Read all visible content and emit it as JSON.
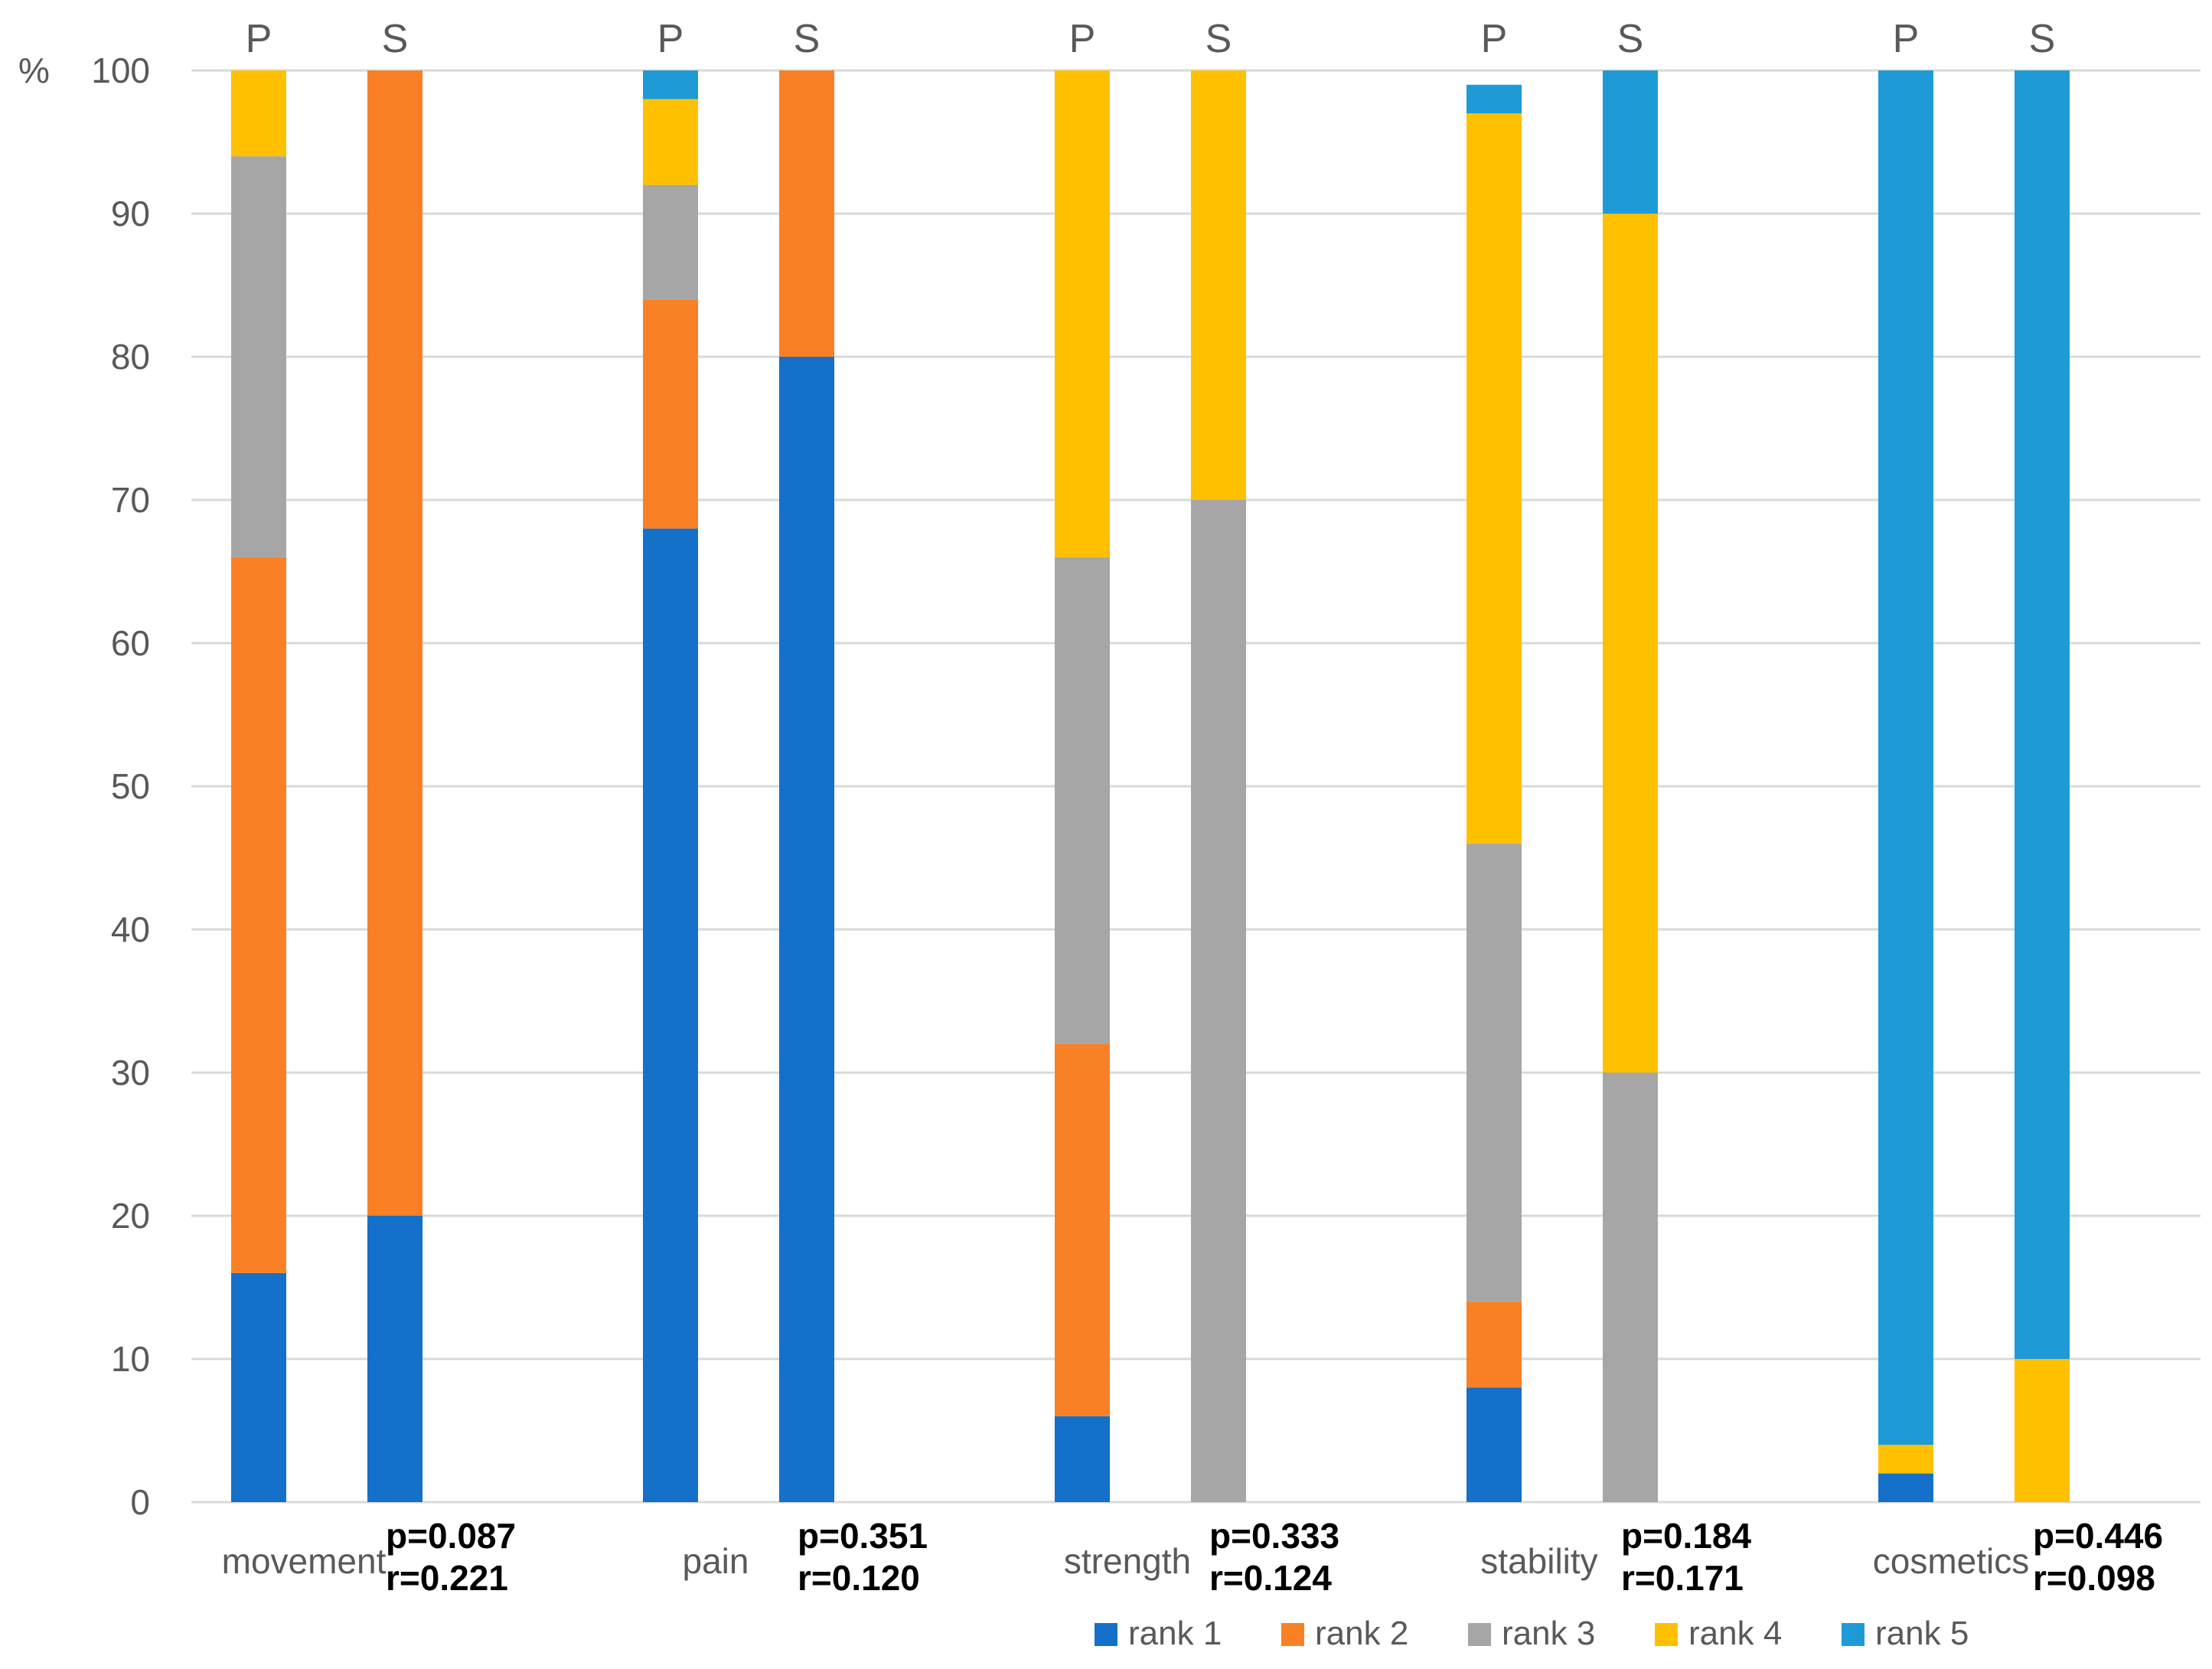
{
  "chart_data": {
    "type": "bar",
    "stacked": true,
    "y_unit_label": "%",
    "ylim": [
      0,
      100
    ],
    "y_ticks": [
      0,
      10,
      20,
      30,
      40,
      50,
      60,
      70,
      80,
      90,
      100
    ],
    "grid": true,
    "legend_position": "bottom-right",
    "series": [
      {
        "name": "rank 1",
        "color": "#1470C8"
      },
      {
        "name": "rank 2",
        "color": "#F98025"
      },
      {
        "name": "rank 3",
        "color": "#A6A6A6"
      },
      {
        "name": "rank 4",
        "color": "#FFC000"
      },
      {
        "name": "rank 5",
        "color": "#1E9BD7"
      }
    ],
    "groups": [
      {
        "label": "movement",
        "bars": [
          {
            "label": "P",
            "values": [
              16,
              50,
              28,
              6,
              0
            ]
          },
          {
            "label": "S",
            "values": [
              20,
              80,
              0,
              0,
              0
            ]
          }
        ],
        "stats": [
          "p=0.087",
          "r=0.221"
        ]
      },
      {
        "label": "pain",
        "bars": [
          {
            "label": "P",
            "values": [
              68,
              16,
              8,
              6,
              2
            ]
          },
          {
            "label": "S",
            "values": [
              80,
              20,
              0,
              0,
              0
            ]
          }
        ],
        "stats": [
          "p=0.351",
          "r=0.120"
        ]
      },
      {
        "label": "strength",
        "bars": [
          {
            "label": "P",
            "values": [
              6,
              26,
              34,
              34,
              0
            ]
          },
          {
            "label": "S",
            "values": [
              0,
              0,
              70,
              30,
              0
            ]
          }
        ],
        "stats": [
          "p=0.333",
          "r=0.124"
        ]
      },
      {
        "label": "stability",
        "bars": [
          {
            "label": "P",
            "values": [
              8,
              6,
              32,
              51,
              2
            ]
          },
          {
            "label": "S",
            "values": [
              0,
              0,
              30,
              60,
              10
            ]
          }
        ],
        "stats": [
          "p=0.184",
          "r=0.171"
        ]
      },
      {
        "label": "cosmetics",
        "bars": [
          {
            "label": "P",
            "values": [
              2,
              0,
              0,
              2,
              96
            ]
          },
          {
            "label": "S",
            "values": [
              0,
              0,
              0,
              10,
              90
            ]
          }
        ],
        "stats": [
          "p=0.446",
          "r=0.098"
        ]
      }
    ]
  }
}
